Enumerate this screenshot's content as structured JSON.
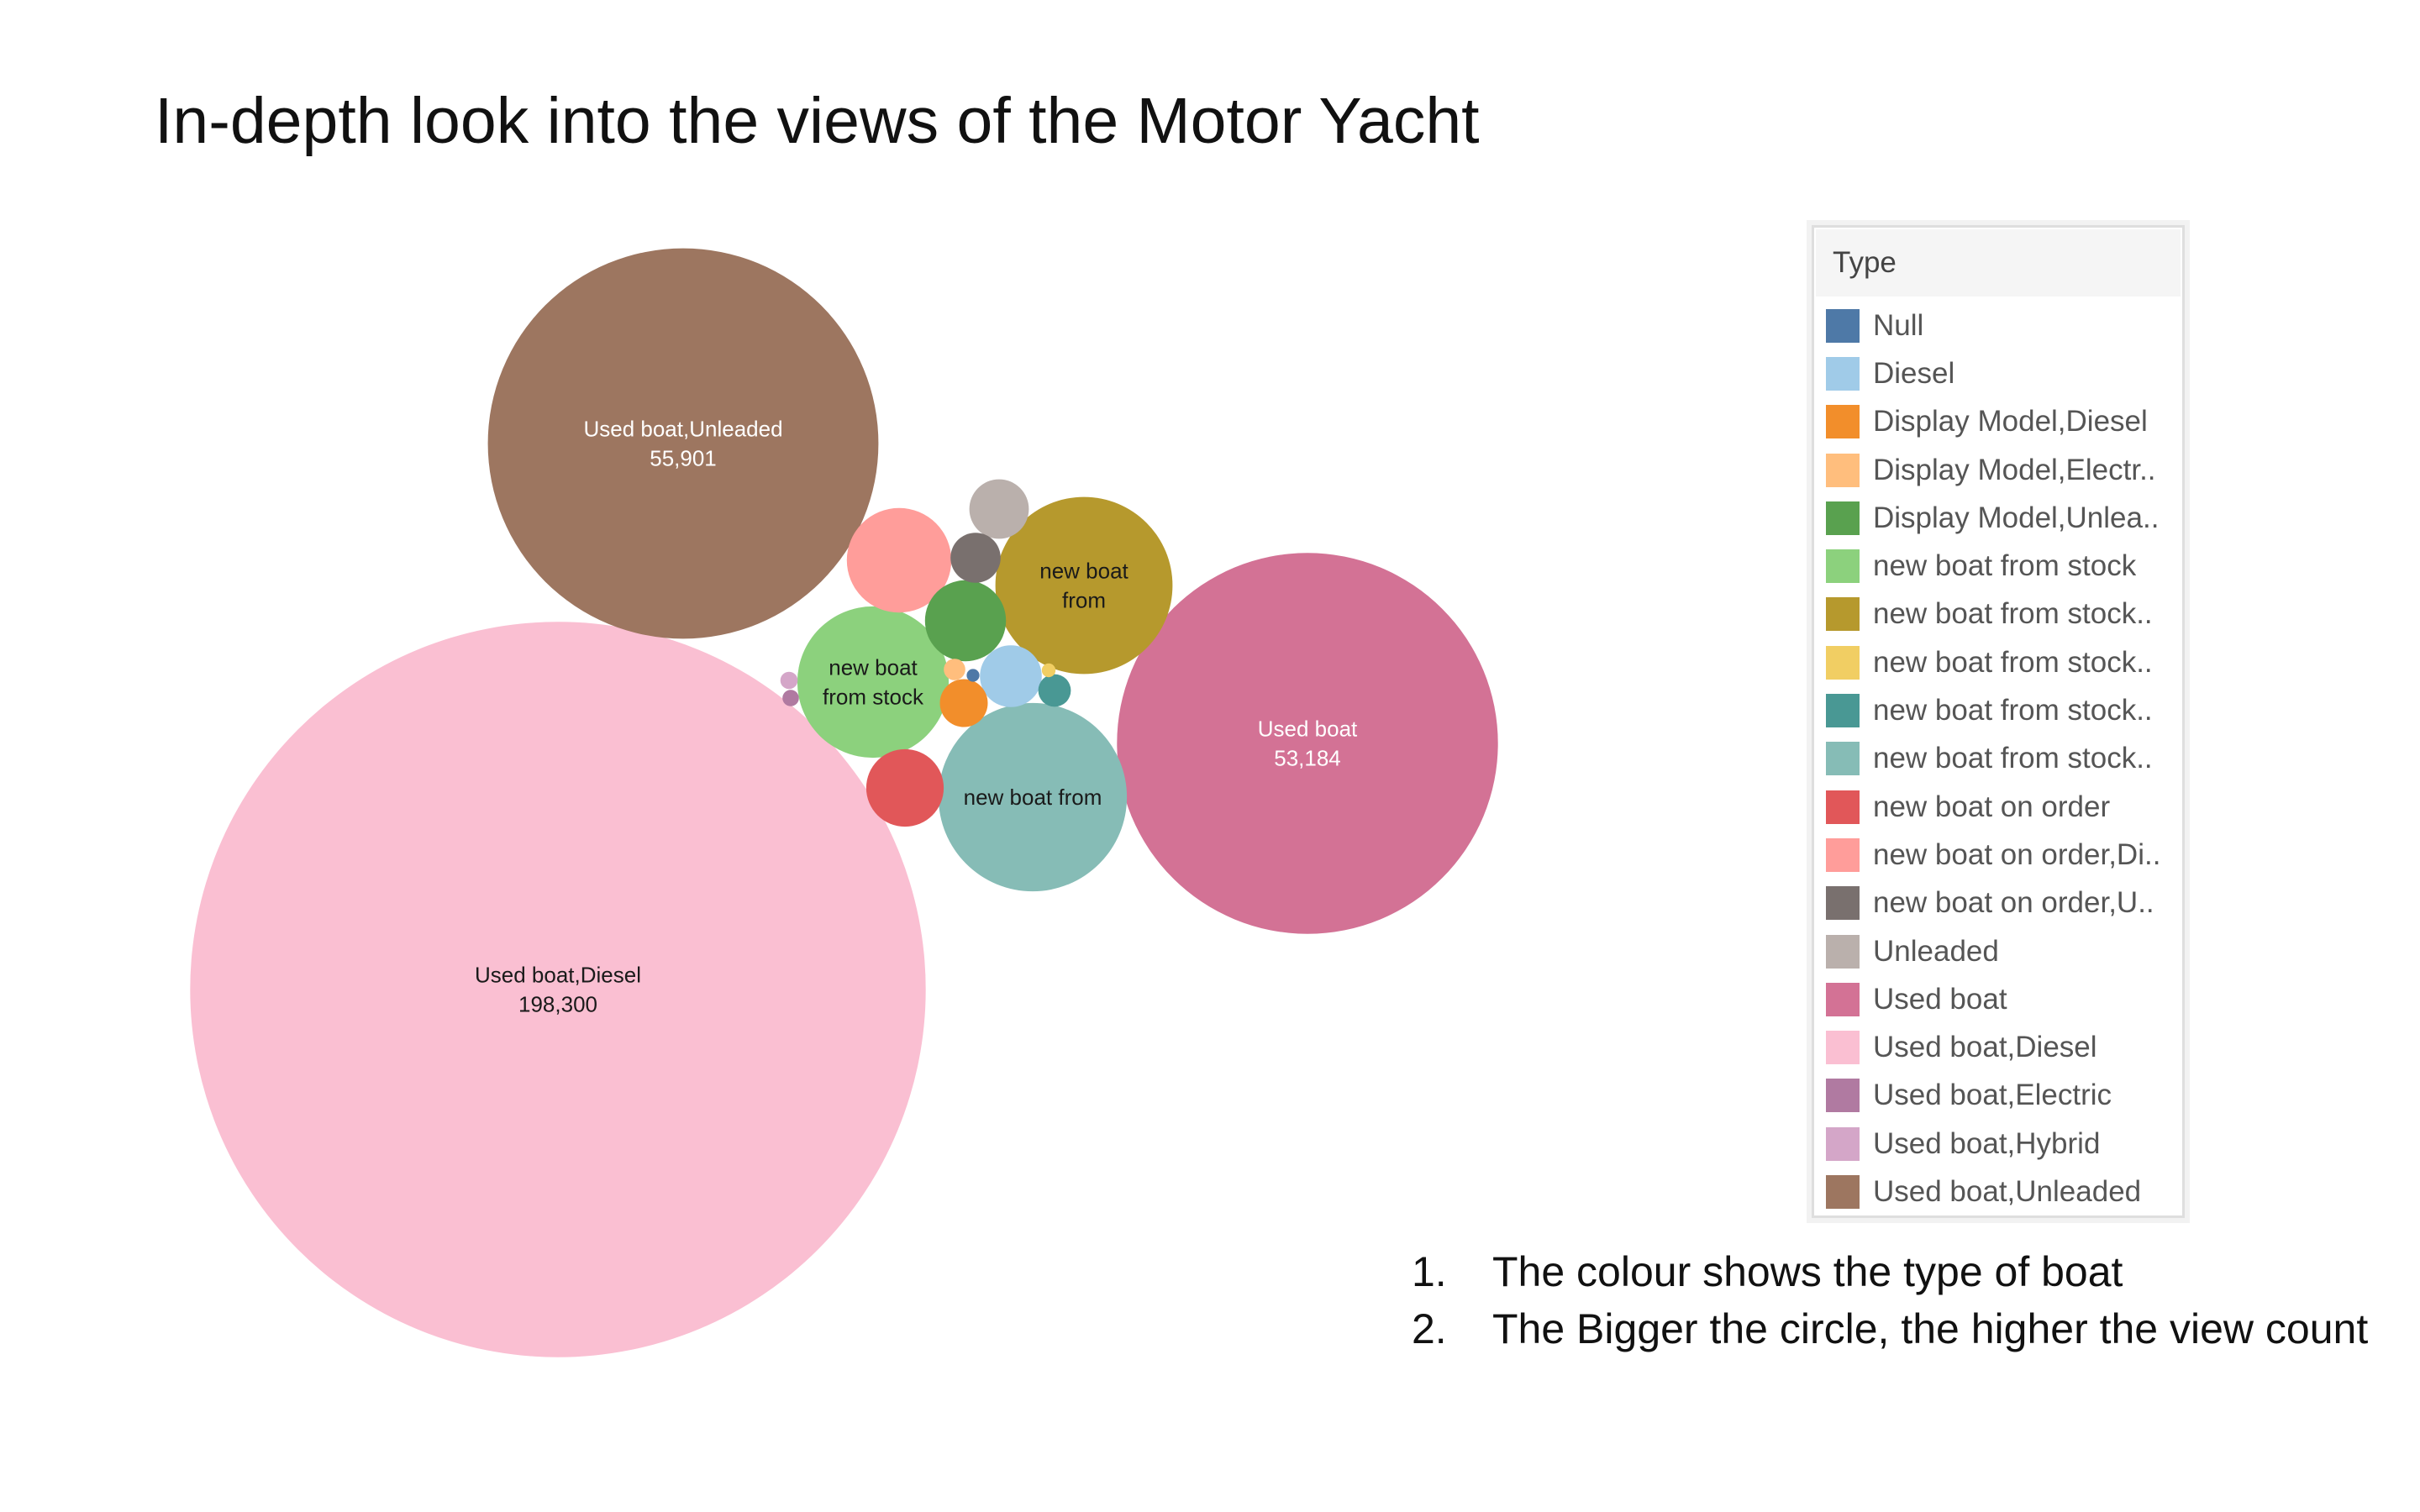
{
  "title": "In-depth look into the views of the Motor Yacht",
  "chart_data": {
    "type": "bubble",
    "size_encoding": "view count",
    "color_encoding": "Type",
    "legend": {
      "title": "Type",
      "placement": "right",
      "entries": [
        {
          "label": "Null",
          "color": "#4e79a7"
        },
        {
          "label": "Diesel",
          "color": "#a0cbe8"
        },
        {
          "label": "Display Model,Diesel",
          "color": "#f28e2b"
        },
        {
          "label": "Display Model,Electr..",
          "color": "#ffbe7d"
        },
        {
          "label": "Display Model,Unlea..",
          "color": "#59a14f"
        },
        {
          "label": "new boat from stock",
          "color": "#8cd17d"
        },
        {
          "label": "new boat from stock..",
          "color": "#b6992d"
        },
        {
          "label": "new boat from stock..",
          "color": "#f1ce63"
        },
        {
          "label": "new boat from stock..",
          "color": "#499894"
        },
        {
          "label": "new boat from stock..",
          "color": "#86bcb6"
        },
        {
          "label": "new boat on order",
          "color": "#e15759"
        },
        {
          "label": "new boat on order,Di..",
          "color": "#ff9d9a"
        },
        {
          "label": "new boat on order,U..",
          "color": "#79706e"
        },
        {
          "label": "Unleaded",
          "color": "#bab0ac"
        },
        {
          "label": "Used boat",
          "color": "#d37295"
        },
        {
          "label": "Used boat,Diesel",
          "color": "#fabfd2"
        },
        {
          "label": "Used boat,Electric",
          "color": "#b07aa1"
        },
        {
          "label": "Used boat,Hybrid",
          "color": "#d4a6c8"
        },
        {
          "label": "Used boat,Unleaded",
          "color": "#9d7660"
        }
      ]
    },
    "bubbles": [
      {
        "type_index": 15,
        "value": 198300,
        "label_lines": [
          "Used boat,Diesel",
          "198,300"
        ],
        "label_color": "#1a1a1a"
      },
      {
        "type_index": 18,
        "value": 55901,
        "label_lines": [
          "Used boat,Unleaded",
          "55,901"
        ],
        "label_color": "#ffffff"
      },
      {
        "type_index": 14,
        "value": 53184,
        "label_lines": [
          "Used boat",
          "53,184"
        ],
        "label_color": "#ffffff"
      },
      {
        "type_index": 9,
        "value": 13000,
        "label_lines": [
          "new boat from"
        ],
        "label_color": "#1a1a1a"
      },
      {
        "type_index": 6,
        "value": 11500,
        "label_lines": [
          "new boat",
          "from"
        ],
        "label_color": "#1a1a1a"
      },
      {
        "type_index": 5,
        "value": 8400,
        "label_lines": [
          "new boat",
          "from stock"
        ],
        "label_color": "#1a1a1a"
      },
      {
        "type_index": 11,
        "value": 4000,
        "label_lines": [],
        "label_color": "#1a1a1a"
      },
      {
        "type_index": 4,
        "value": 2400,
        "label_lines": [],
        "label_color": "#1a1a1a"
      },
      {
        "type_index": 10,
        "value": 2200,
        "label_lines": [],
        "label_color": "#1a1a1a"
      },
      {
        "type_index": 1,
        "value": 1400,
        "label_lines": [],
        "label_color": "#1a1a1a"
      },
      {
        "type_index": 13,
        "value": 1300,
        "label_lines": [],
        "label_color": "#1a1a1a"
      },
      {
        "type_index": 12,
        "value": 920,
        "label_lines": [],
        "label_color": "#1a1a1a"
      },
      {
        "type_index": 2,
        "value": 840,
        "label_lines": [],
        "label_color": "#1a1a1a"
      },
      {
        "type_index": 8,
        "value": 390,
        "label_lines": [],
        "label_color": "#1a1a1a"
      },
      {
        "type_index": 3,
        "value": 170,
        "label_lines": [],
        "label_color": "#1a1a1a"
      },
      {
        "type_index": 17,
        "value": 110,
        "label_lines": [],
        "label_color": "#1a1a1a"
      },
      {
        "type_index": 16,
        "value": 100,
        "label_lines": [],
        "label_color": "#1a1a1a"
      },
      {
        "type_index": 7,
        "value": 70,
        "label_lines": [],
        "label_color": "#1a1a1a"
      },
      {
        "type_index": 0,
        "value": 60,
        "label_lines": [],
        "label_color": "#1a1a1a"
      }
    ]
  },
  "notes": [
    {
      "number": "1.",
      "text": "The colour shows the type of boat"
    },
    {
      "number": "2.",
      "text": "The Bigger the circle, the higher the view count"
    }
  ]
}
